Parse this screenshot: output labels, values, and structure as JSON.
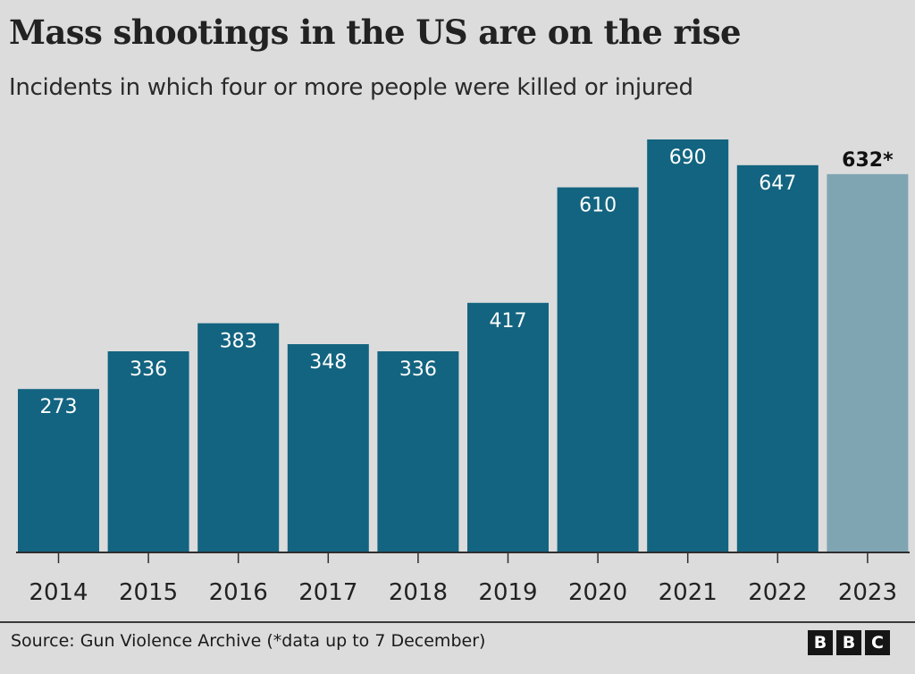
{
  "header": {
    "title": "Mass shootings in the US are on the rise",
    "subtitle": "Incidents in which four or more people were killed or injured"
  },
  "footer": {
    "source": "Source: Gun Violence Archive (*data up to 7 December)",
    "logo_letters": [
      "B",
      "B",
      "C"
    ]
  },
  "chart_data": {
    "type": "bar",
    "title": "Mass shootings in the US are on the rise",
    "subtitle": "Incidents in which four or more people were killed or injured",
    "categories": [
      "2014",
      "2015",
      "2016",
      "2017",
      "2018",
      "2019",
      "2020",
      "2021",
      "2022",
      "2023"
    ],
    "values": [
      273,
      336,
      383,
      348,
      336,
      417,
      610,
      690,
      647,
      632
    ],
    "value_labels": [
      "273",
      "336",
      "383",
      "348",
      "336",
      "417",
      "610",
      "690",
      "647",
      "632*"
    ],
    "partial_data": [
      false,
      false,
      false,
      false,
      false,
      false,
      false,
      false,
      false,
      true
    ],
    "ylim": [
      0,
      690
    ],
    "grid": false,
    "legend": "none",
    "colors": {
      "bar": "#136480",
      "bar_partial": "#7fa5b2",
      "label_inside": "#ffffff",
      "label_outside": "#111111",
      "axis": "#2e2e2e",
      "tick_label": "#222222"
    }
  }
}
